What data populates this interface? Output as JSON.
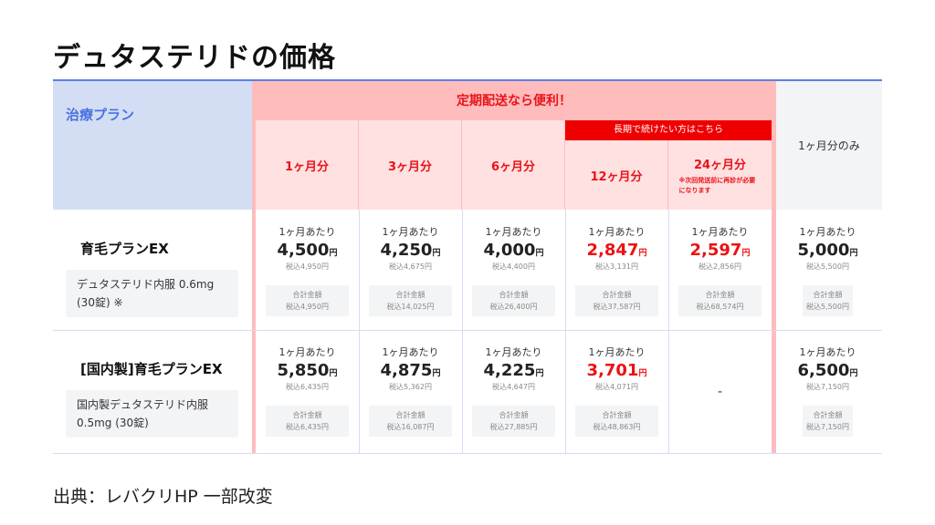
{
  "title": "デュタステリドの価格",
  "header": {
    "plan": "治療プラン",
    "teiki": "定期配送なら便利！",
    "long_term": "長期で続けたい方はこちら",
    "note24": "※次回発送前に再診が必要になります",
    "last": "1ヶ月分のみ",
    "columns": [
      "1ヶ月分",
      "3ヶ月分",
      "6ヶ月分",
      "12ヶ月分",
      "24ヶ月分"
    ]
  },
  "colors": {
    "accent_blue": "#4a72e0",
    "red": "#ee0000",
    "pink": "#ffbcbc"
  },
  "labels": {
    "per_month": "1ヶ月あたり",
    "total": "合計金額",
    "yen": "円"
  },
  "rows": [
    {
      "name": "育毛プランEX",
      "desc": "デュタステリド内服 0.6mg (30錠) ※",
      "cells": [
        {
          "price": "4,500",
          "tax": "税込4,950円",
          "total": "税込4,950円",
          "red": false
        },
        {
          "price": "4,250",
          "tax": "税込4,675円",
          "total": "税込14,025円",
          "red": false
        },
        {
          "price": "4,000",
          "tax": "税込4,400円",
          "total": "税込26,400円",
          "red": false
        },
        {
          "price": "2,847",
          "tax": "税込3,131円",
          "total": "税込37,587円",
          "red": true
        },
        {
          "price": "2,597",
          "tax": "税込2,856円",
          "total": "税込68,574円",
          "red": true
        },
        {
          "price": "5,000",
          "tax": "税込5,500円",
          "total": "税込5,500円",
          "red": false
        }
      ]
    },
    {
      "name": "[国内製]育毛プランEX",
      "desc": "国内製デュタステリド内服 0.5mg (30錠)",
      "cells": [
        {
          "price": "5,850",
          "tax": "税込6,435円",
          "total": "税込6,435円",
          "red": false
        },
        {
          "price": "4,875",
          "tax": "税込5,362円",
          "total": "税込16,087円",
          "red": false
        },
        {
          "price": "4,225",
          "tax": "税込4,647円",
          "total": "税込27,885円",
          "red": false
        },
        {
          "price": "3,701",
          "tax": "税込4,071円",
          "total": "税込48,863円",
          "red": true
        },
        {
          "dash": "-"
        },
        {
          "price": "6,500",
          "tax": "税込7,150円",
          "total": "税込7,150円",
          "red": false
        }
      ]
    }
  ],
  "source": "出典：レバクリHP 一部改変"
}
